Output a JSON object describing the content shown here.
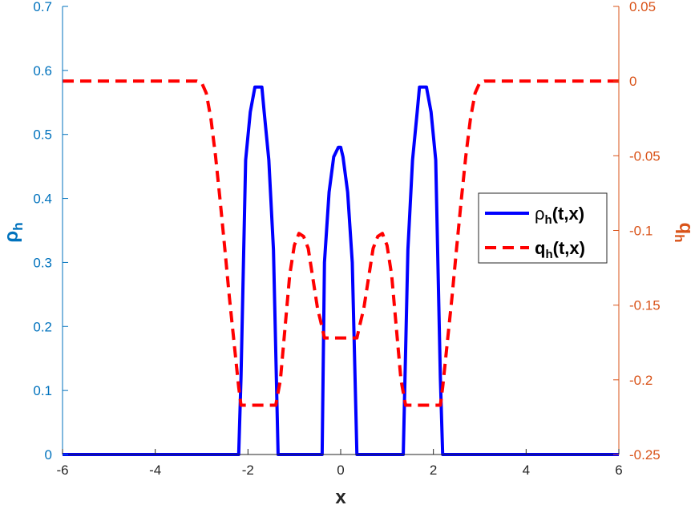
{
  "chart_data": {
    "type": "line",
    "xlabel": "x",
    "ylabel_left": "ρ",
    "ylabel_left_sub": "h",
    "ylabel_right": "q",
    "ylabel_right_sub": "h",
    "xlim": [
      -6,
      6
    ],
    "ylim_left": [
      0,
      0.7
    ],
    "ylim_right": [
      -0.25,
      0.05
    ],
    "x_ticks": [
      -6,
      -4,
      -2,
      0,
      2,
      4,
      6
    ],
    "y_left_ticks": [
      0,
      0.1,
      0.2,
      0.3,
      0.4,
      0.5,
      0.6,
      0.7
    ],
    "y_right_ticks": [
      -0.25,
      -0.2,
      -0.15,
      -0.1,
      -0.05,
      0,
      0.05
    ],
    "x_tick_labels": [
      "-6",
      "-4",
      "-2",
      "0",
      "2",
      "4",
      "6"
    ],
    "y_left_tick_labels": [
      "0",
      "0.1",
      "0.2",
      "0.3",
      "0.4",
      "0.5",
      "0.6",
      "0.7"
    ],
    "y_right_tick_labels": [
      "-0.25",
      "-0.2",
      "-0.15",
      "-0.1",
      "-0.05",
      "0",
      "0.05"
    ],
    "grid": false,
    "legend_position": "right",
    "colors": {
      "rho": "#0000FF",
      "q": "#FF0000",
      "left_axis": "#0072BD",
      "right_axis": "#D95319",
      "x_axis": "#262626"
    },
    "series": [
      {
        "name": "ρ",
        "name_sub": "h",
        "name_suffix": "(t,x)",
        "axis": "left",
        "style": "solid",
        "x": [
          -6,
          -2.2,
          -2.15,
          -2.05,
          -1.95,
          -1.85,
          -1.8,
          -1.7,
          -1.65,
          -1.55,
          -1.45,
          -1.35,
          -1.3,
          -0.4,
          -0.35,
          -0.25,
          -0.15,
          -0.05,
          0.0,
          0.05,
          0.15,
          0.25,
          0.35,
          0.4,
          1.3,
          1.35,
          1.45,
          1.55,
          1.65,
          1.7,
          1.8,
          1.85,
          1.95,
          2.05,
          2.15,
          2.2,
          6
        ],
        "y": [
          0,
          0,
          0.12,
          0.46,
          0.535,
          0.574,
          0.574,
          0.574,
          0.535,
          0.46,
          0.32,
          0.0,
          0,
          0,
          0.3,
          0.41,
          0.465,
          0.48,
          0.48,
          0.465,
          0.41,
          0.3,
          0.0,
          0,
          0,
          0.0,
          0.32,
          0.46,
          0.535,
          0.574,
          0.574,
          0.574,
          0.535,
          0.46,
          0.12,
          0,
          0
        ]
      },
      {
        "name": "q",
        "name_sub": "h",
        "name_suffix": "(t,x)",
        "axis": "right",
        "style": "dashed",
        "x": [
          -6,
          -3.1,
          -3.0,
          -2.9,
          -2.8,
          -2.7,
          -2.6,
          -2.5,
          -2.4,
          -2.3,
          -2.2,
          -2.15,
          -1.4,
          -1.3,
          -1.2,
          -1.1,
          -1.0,
          -0.9,
          -0.8,
          -0.7,
          -0.6,
          -0.5,
          -0.4,
          -0.35,
          0.35,
          0.4,
          0.5,
          0.6,
          0.7,
          0.8,
          0.9,
          1.0,
          1.1,
          1.2,
          1.3,
          1.4,
          2.15,
          2.2,
          2.3,
          2.4,
          2.5,
          2.6,
          2.7,
          2.8,
          2.9,
          3.0,
          3.1,
          6
        ],
        "y": [
          0,
          0,
          -0.001,
          -0.008,
          -0.025,
          -0.05,
          -0.08,
          -0.112,
          -0.145,
          -0.175,
          -0.205,
          -0.217,
          -0.217,
          -0.2,
          -0.165,
          -0.13,
          -0.11,
          -0.102,
          -0.104,
          -0.112,
          -0.132,
          -0.152,
          -0.165,
          -0.172,
          -0.172,
          -0.165,
          -0.152,
          -0.132,
          -0.112,
          -0.104,
          -0.102,
          -0.11,
          -0.13,
          -0.165,
          -0.2,
          -0.217,
          -0.217,
          -0.205,
          -0.175,
          -0.145,
          -0.112,
          -0.08,
          -0.05,
          -0.025,
          -0.008,
          -0.001,
          0,
          0
        ]
      }
    ]
  }
}
